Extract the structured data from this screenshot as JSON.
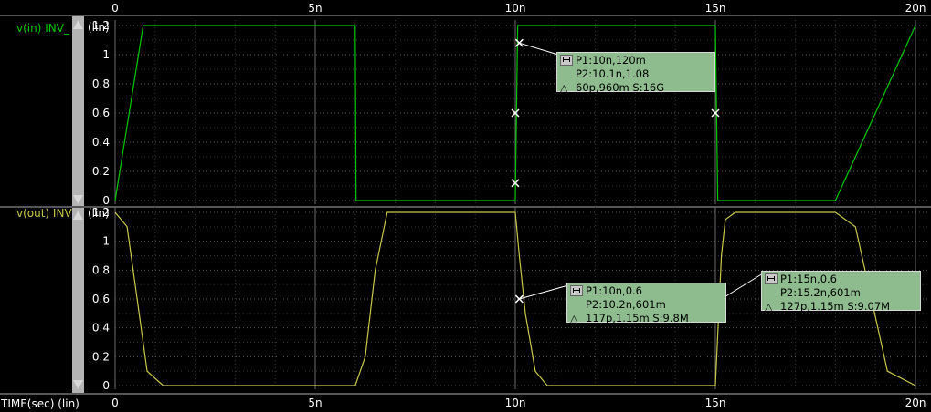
{
  "x_axis_label": "TIME(sec) (lin)",
  "colors": {
    "background": "#000000",
    "grid": "#5a5a5a",
    "v_in": "#00c800",
    "v_out": "#c8c848",
    "axis_text": "#ffffff",
    "annotation_bg": "#8fbc8f"
  },
  "chart_data": [
    {
      "type": "line",
      "signal_label": "v(in) INV_",
      "scale_label": "(lin)",
      "x_ticks": [
        "0",
        "5n",
        "10n",
        "15n",
        "20n"
      ],
      "y_ticks": [
        "0",
        "0.2",
        "0.4",
        "0.6",
        "0.8",
        "1",
        "1.2"
      ],
      "xlim": [
        0,
        20
      ],
      "ylim": [
        0,
        1.2
      ],
      "series": [
        {
          "x": [
            0,
            0.7,
            6.0,
            6.02,
            10.0,
            10.06,
            15.0,
            15.06,
            18.0,
            20.0
          ],
          "y": [
            0,
            1.2,
            1.2,
            0,
            0,
            1.2,
            1.2,
            0,
            0,
            1.2
          ]
        }
      ],
      "markers": [
        {
          "x": 10.0,
          "y": 0.12
        },
        {
          "x": 10.1,
          "y": 1.08
        },
        {
          "x": 10.0,
          "y": 0.6
        },
        {
          "x": 15.0,
          "y": 0.6
        }
      ],
      "annotation": {
        "p1": "P1:10n,120m",
        "p2": "P2:10.1n,1.08",
        "delta": "60p,960m S:16G"
      }
    },
    {
      "type": "line",
      "signal_label": "v(out) INV",
      "scale_label": "(lin)",
      "x_ticks": [
        "0",
        "5n",
        "10n",
        "15n",
        "20n"
      ],
      "y_ticks": [
        "0",
        "0.2",
        "0.4",
        "0.6",
        "0.8",
        "1",
        "1.2"
      ],
      "xlim": [
        0,
        20
      ],
      "ylim": [
        0,
        1.2
      ],
      "series": [
        {
          "x": [
            0,
            0.3,
            0.55,
            0.8,
            1.2,
            6.0,
            6.25,
            6.5,
            6.8,
            10.0,
            10.1,
            10.25,
            10.5,
            10.8,
            15.0,
            15.15,
            15.25,
            15.5,
            15.8,
            18.0,
            18.5,
            18.9,
            19.3,
            20.0
          ],
          "y": [
            1.2,
            1.1,
            0.6,
            0.1,
            0,
            0,
            0.2,
            0.8,
            1.2,
            1.2,
            0.9,
            0.5,
            0.1,
            0,
            0,
            0.9,
            1.15,
            1.2,
            1.2,
            1.2,
            1.1,
            0.6,
            0.1,
            0
          ]
        }
      ],
      "markers": [
        {
          "x": 10.1,
          "y": 0.6
        },
        {
          "x": 15.15,
          "y": 0.6
        }
      ],
      "annotations": [
        {
          "p1": "P1:10n,0.6",
          "p2": "P2:10.2n,601m",
          "delta": "117p,1.15m S:9.8M"
        },
        {
          "p1": "P1:15n,0.6",
          "p2": "P2:15.2n,601m",
          "delta": "127p,1.15m S:9.07M"
        }
      ]
    }
  ]
}
